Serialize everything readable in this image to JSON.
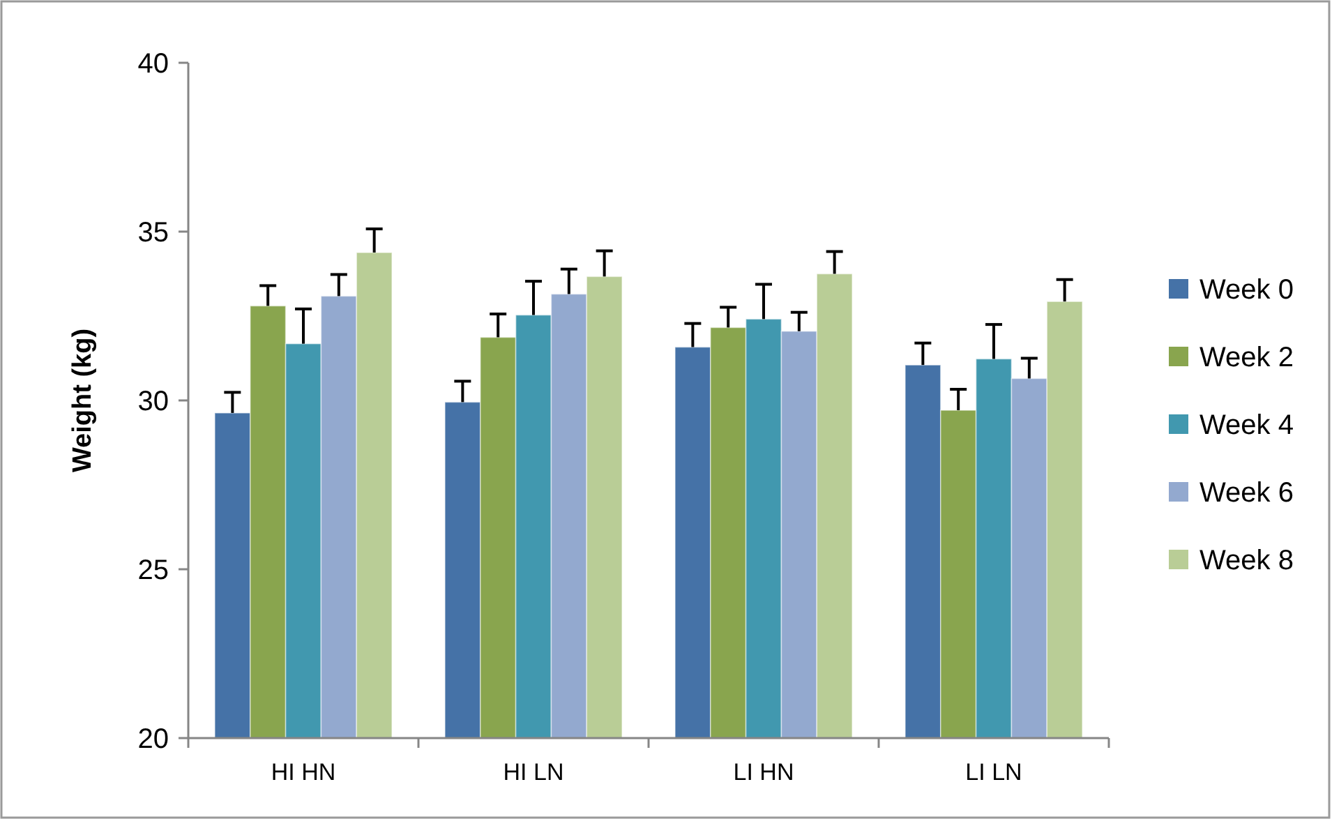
{
  "chart_data": {
    "type": "bar",
    "ylabel": "Weight (kg)",
    "categories": [
      "HI HN",
      "HI LN",
      "LI HN",
      "LI LN"
    ],
    "ylim": [
      20,
      40
    ],
    "yticks": [
      20,
      25,
      30,
      35,
      40
    ],
    "grid": false,
    "legend": "right",
    "series": [
      {
        "name": "Week 0",
        "color": "#4572a7",
        "values": [
          29.63,
          29.95,
          31.58,
          31.05
        ],
        "errors": [
          [
            29.63,
            30.24
          ],
          [
            29.95,
            30.57
          ],
          [
            31.58,
            32.28
          ],
          [
            31.05,
            31.7
          ]
        ]
      },
      {
        "name": "Week 2",
        "color": "#89a54e",
        "values": [
          32.8,
          31.87,
          32.16,
          29.71
        ],
        "errors": [
          [
            32.8,
            33.4
          ],
          [
            31.87,
            32.56
          ],
          [
            32.16,
            32.76
          ],
          [
            29.71,
            30.33
          ]
        ]
      },
      {
        "name": "Week 4",
        "color": "#4198af",
        "values": [
          31.68,
          32.53,
          32.41,
          31.23
        ],
        "errors": [
          [
            31.68,
            32.71
          ],
          [
            32.53,
            33.53
          ],
          [
            32.41,
            33.44
          ],
          [
            31.23,
            32.25
          ]
        ]
      },
      {
        "name": "Week 6",
        "color": "#93a9cf",
        "values": [
          33.09,
          33.15,
          32.05,
          30.65
        ],
        "errors": [
          [
            33.09,
            33.73
          ],
          [
            33.15,
            33.89
          ],
          [
            32.05,
            32.61
          ],
          [
            30.65,
            31.25
          ]
        ]
      },
      {
        "name": "Week 8",
        "color": "#b9cd96",
        "values": [
          34.38,
          33.67,
          33.75,
          32.93
        ],
        "errors": [
          [
            34.38,
            35.08
          ],
          [
            33.67,
            34.43
          ],
          [
            33.75,
            34.41
          ],
          [
            32.93,
            33.58
          ]
        ]
      }
    ]
  }
}
